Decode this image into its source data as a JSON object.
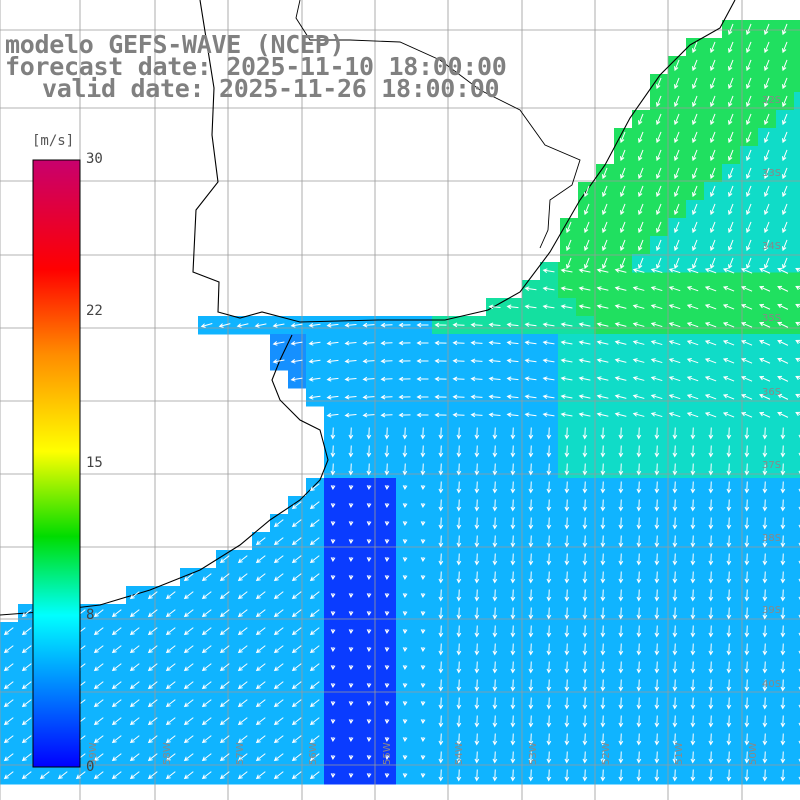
{
  "header": {
    "model_line": "modelo GEFS-WAVE (NCEP)",
    "forecast_line": "forecast date: 2025-11-10 18:00:00",
    "valid_line": "valid date: 2025-11-26 18:00:00"
  },
  "colorbar": {
    "unit": "[m/s]",
    "ticks": [
      "30",
      "22",
      "15",
      "8",
      "0"
    ],
    "tick_values": [
      30,
      22,
      15,
      8,
      0
    ],
    "colors_high_to_low": [
      "#c8006e",
      "#ff0000",
      "#ff8c00",
      "#ffff00",
      "#00dc00",
      "#00ffff",
      "#0000ff"
    ]
  },
  "map": {
    "lat_labels": [
      "32S",
      "33S",
      "34S",
      "35S",
      "36S",
      "37S",
      "38S",
      "39S",
      "40S"
    ],
    "lon_labels": [
      "59W",
      "58W",
      "57W",
      "56W",
      "55W",
      "54W",
      "53W",
      "52W",
      "51W",
      "50W"
    ],
    "land_color": "#ffffff",
    "graticule_color": "#9a9a9a",
    "arrow_color": "#ffffff",
    "wind_fields": {
      "nearshore_blue": "#0a3cff",
      "open_cyan": "#10b4ff",
      "north_green": "#20e060"
    }
  }
}
